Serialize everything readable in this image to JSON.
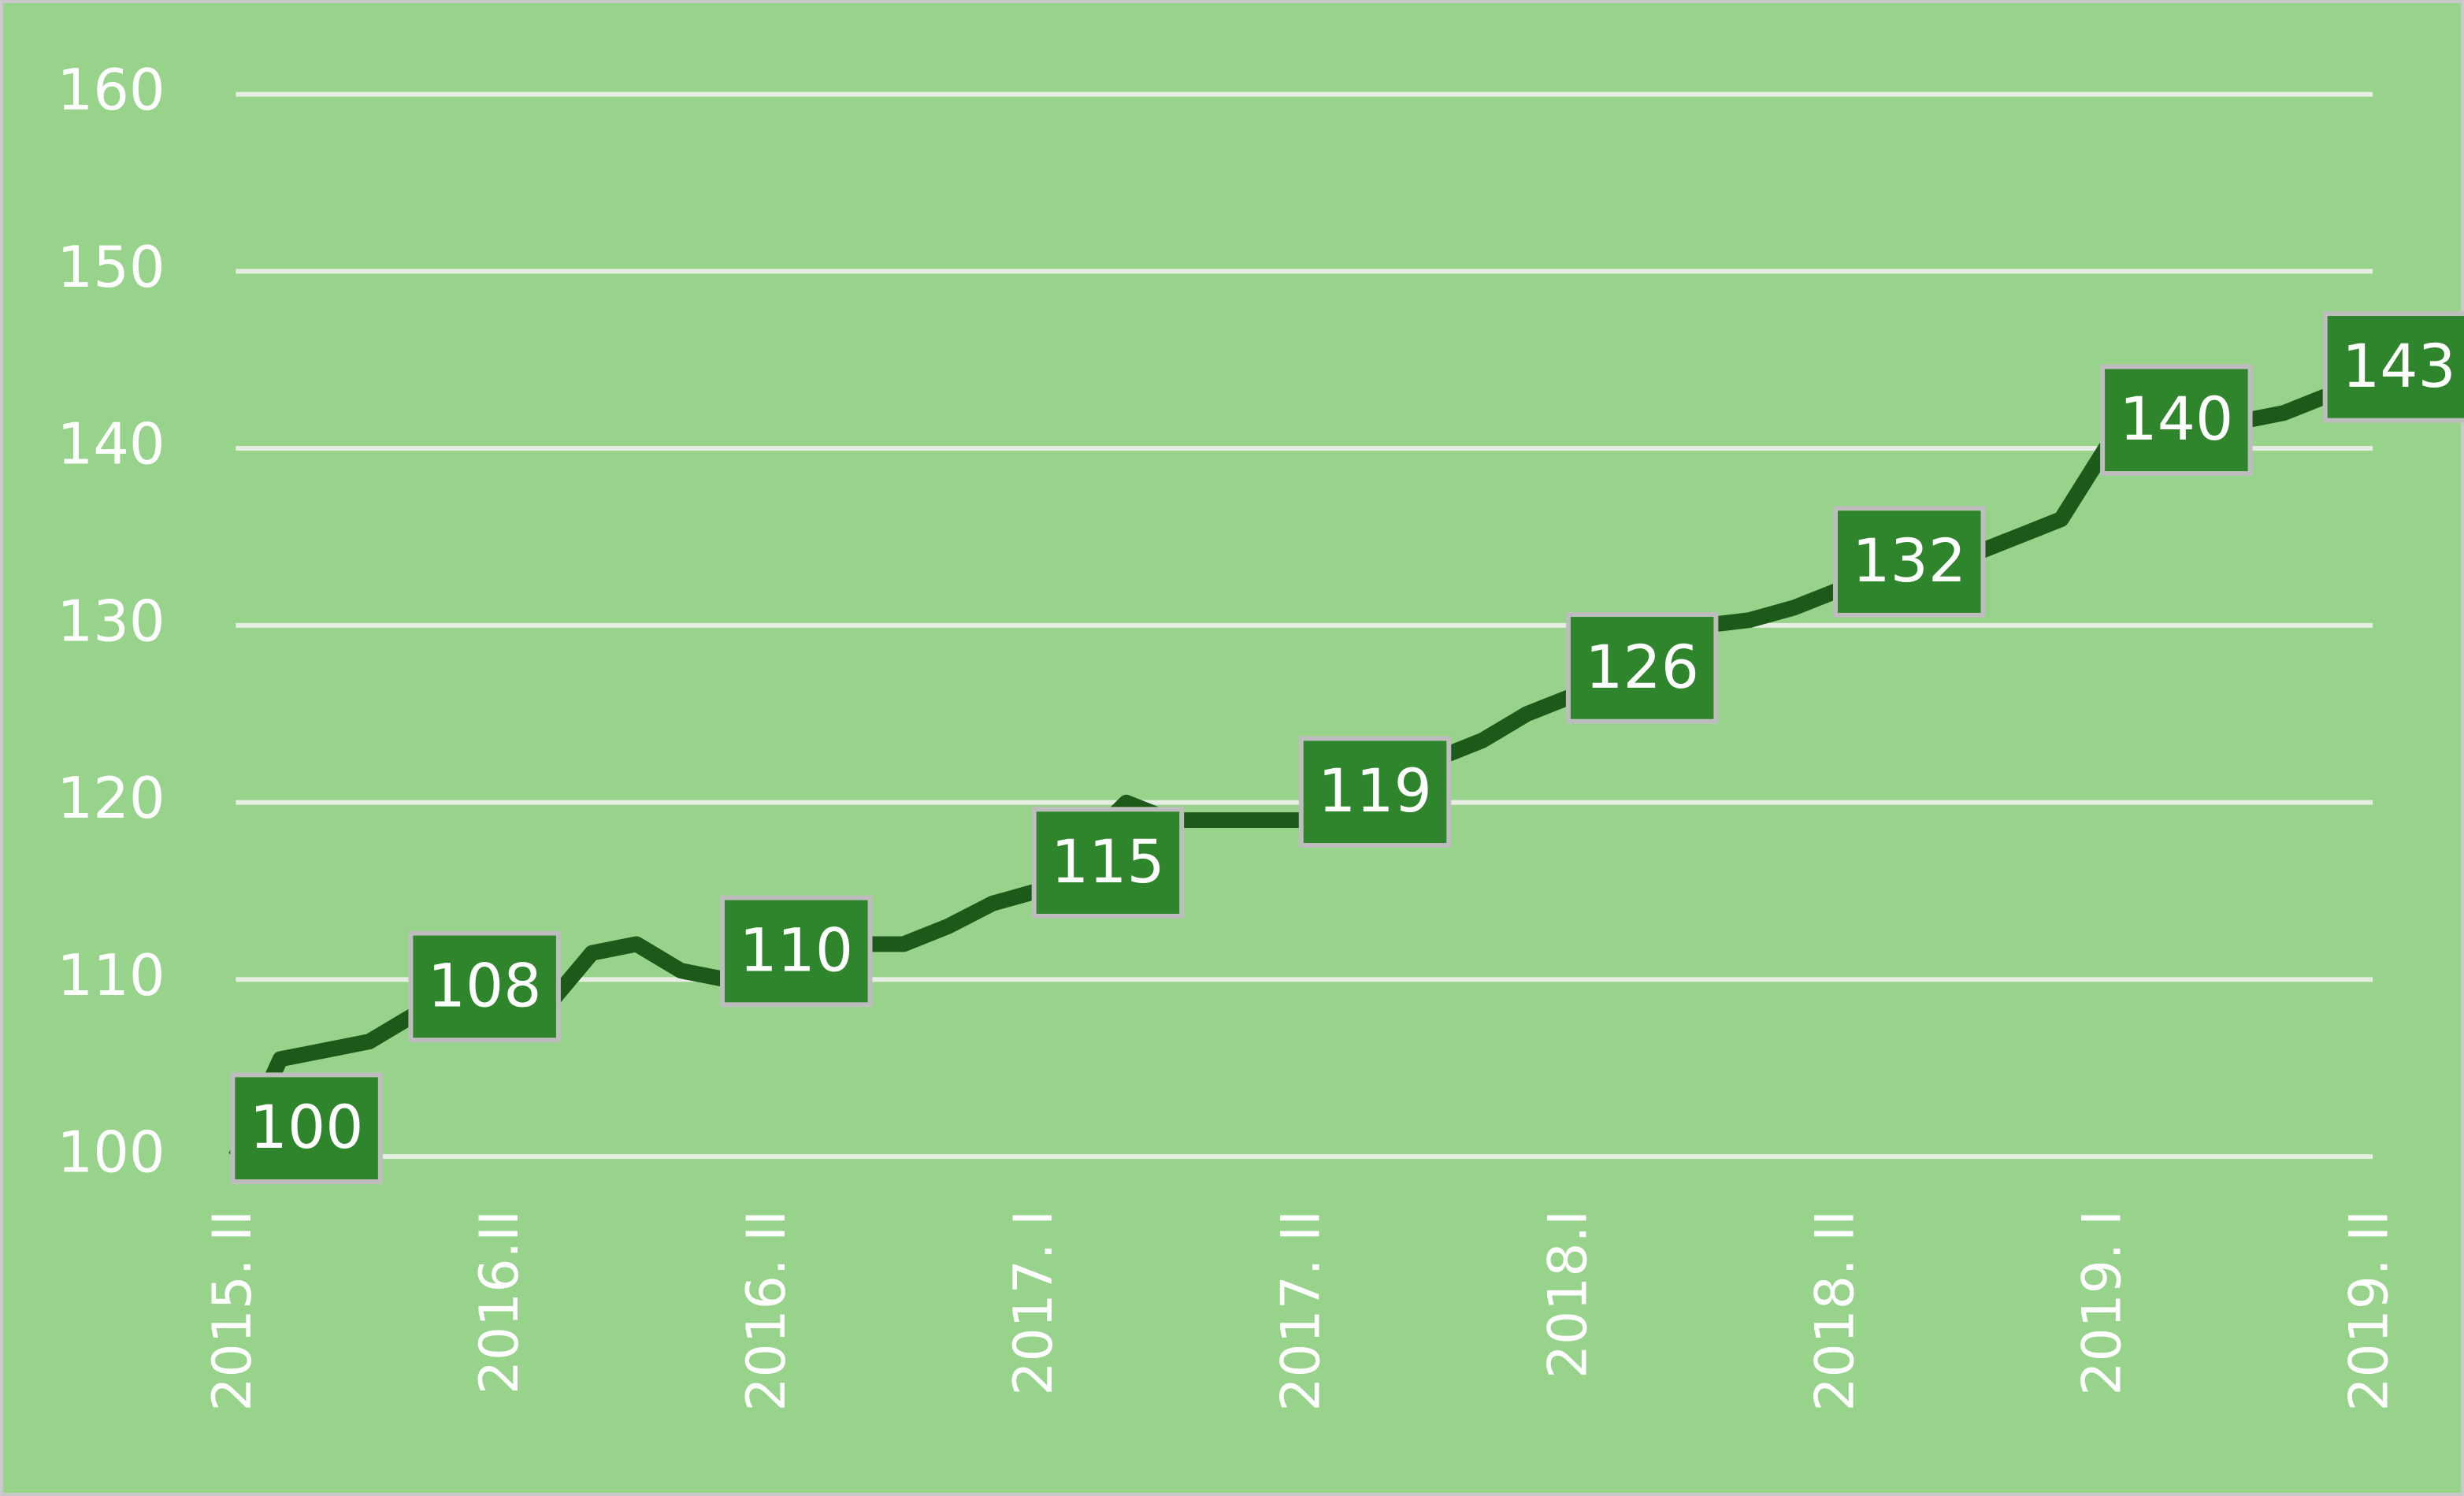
{
  "chart_data": {
    "type": "line",
    "categories": [
      "2015. II",
      null,
      null,
      null,
      null,
      null,
      "2016.II",
      null,
      null,
      null,
      null,
      null,
      "2016. II",
      null,
      null,
      null,
      null,
      null,
      "2017. I",
      null,
      null,
      null,
      null,
      null,
      "2017. II",
      null,
      null,
      null,
      null,
      null,
      "2018.I",
      null,
      null,
      null,
      null,
      null,
      "2018. II",
      null,
      null,
      null,
      null,
      null,
      "2019. I",
      null,
      null,
      null,
      null,
      null,
      "2019. II"
    ],
    "series": [
      {
        "color": "#1d5a19",
        "values": [
          100,
          105.5,
          106,
          106.5,
          108,
          108,
          108,
          108.5,
          111.5,
          112,
          110.5,
          110,
          111.5,
          112,
          112,
          112,
          113,
          114.3,
          115,
          117.5,
          120,
          119,
          119,
          119,
          119,
          119.5,
          121,
          122.5,
          123.5,
          125,
          126,
          129,
          129.5,
          130,
          130.3,
          131,
          132,
          133,
          133.5,
          134,
          135,
          136,
          140,
          140.5,
          141,
          141.5,
          142,
          143,
          143.5
        ],
        "value_labels": [
          "100",
          null,
          null,
          null,
          "108",
          null,
          null,
          null,
          null,
          null,
          null,
          "110",
          null,
          null,
          null,
          null,
          null,
          null,
          "115",
          null,
          null,
          null,
          null,
          null,
          "119",
          null,
          null,
          null,
          null,
          null,
          "126",
          null,
          null,
          null,
          null,
          null,
          "132",
          null,
          null,
          null,
          null,
          null,
          "140",
          null,
          null,
          null,
          null,
          "143",
          null
        ]
      }
    ],
    "ylim": [
      100,
      160
    ],
    "yticks": [
      100,
      110,
      120,
      130,
      140,
      150,
      160
    ],
    "grid": true,
    "background": "#98d38c",
    "label_color": "#2e852b"
  }
}
